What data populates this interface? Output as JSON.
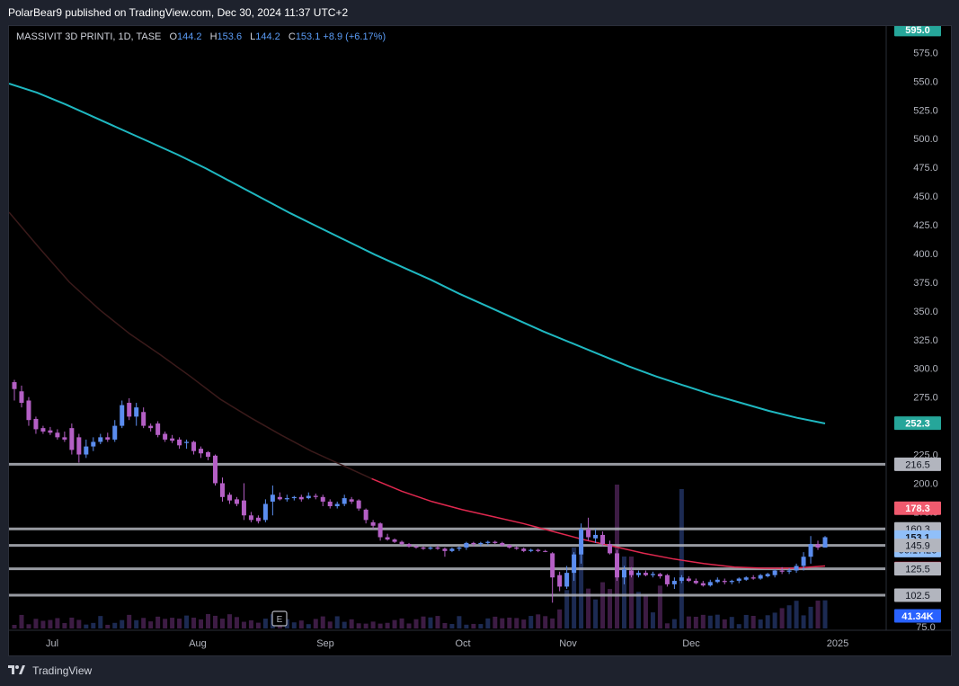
{
  "publish_line": "PolarBear9 published on TradingView.com, Dec 30, 2024 11:37 UTC+2",
  "legend": {
    "symbol": "MASSIVIT 3D PRINTI, 1D, TASE",
    "open_key": "O",
    "open": "144.2",
    "high_key": "H",
    "high": "153.6",
    "low_key": "L",
    "low": "144.2",
    "close_key": "C",
    "close": "153.1",
    "change": "+8.9 (+6.17%)"
  },
  "footer": {
    "brand": "TradingView"
  },
  "colors": {
    "bull": "#5b8def",
    "bear": "#b45fc5",
    "ma_long": "#1fb8c1",
    "ma_mid_dark": "#3a1a1a",
    "ma_mid_red": "#e0284f",
    "hline": "#b2b5be",
    "axis_text": "#b2b5be",
    "volume_bull": "#1c2a52",
    "volume_bear": "#3d1c44"
  },
  "chart_data": {
    "type": "candlestick",
    "symbol": "MASSIVIT 3D PRINTI",
    "interval": "1D",
    "exchange": "TASE",
    "ylim": [
      72,
      598
    ],
    "y_ticks": [
      75,
      100,
      125,
      150,
      175,
      200,
      225,
      250,
      275,
      300,
      325,
      350,
      375,
      400,
      425,
      450,
      475,
      500,
      525,
      550,
      575
    ],
    "x_tick_labels": [
      "Jul",
      "Aug",
      "Sep",
      "Oct",
      "Nov",
      "Dec",
      "2025"
    ],
    "price_badges": [
      {
        "value": "595.0",
        "price": 595.0,
        "color": "#26a69a",
        "kind": "ma"
      },
      {
        "value": "252.3",
        "price": 252.3,
        "color": "#26a69a",
        "kind": "ma"
      },
      {
        "value": "216.5",
        "price": 216.5,
        "color": "#b2b5be",
        "kind": "line"
      },
      {
        "value": "178.3",
        "price": 178.3,
        "color": "#f05a6e",
        "kind": "ma"
      },
      {
        "value": "160.3",
        "price": 160.3,
        "color": "#b2b5be",
        "kind": "line"
      },
      {
        "value": "153.1",
        "price": 153.1,
        "color": "#90bff9",
        "kind": "last",
        "countdown": "06:17:26"
      },
      {
        "value": "145.9",
        "price": 145.9,
        "color": "#b2b5be",
        "kind": "line"
      },
      {
        "value": "125.8",
        "price": 125.8,
        "color": "#e0284f",
        "kind": "ma"
      },
      {
        "value": "125.5",
        "price": 125.5,
        "color": "#b2b5be",
        "kind": "line"
      },
      {
        "value": "102.5",
        "price": 102.5,
        "color": "#b2b5be",
        "kind": "line"
      },
      {
        "value": "41.34K",
        "price": 84.5,
        "color": "#2962ff",
        "kind": "volume"
      }
    ],
    "horizontal_lines": [
      216.5,
      160.3,
      145.9,
      125.5,
      102.5
    ],
    "candles": [
      [
        290,
        272,
        288,
        282,
        "bear"
      ],
      [
        285,
        266,
        280,
        270,
        "bear"
      ],
      [
        275,
        250,
        272,
        255,
        "bear"
      ],
      [
        258,
        243,
        256,
        247,
        "bear"
      ],
      [
        250,
        243,
        248,
        245,
        "bear"
      ],
      [
        249,
        242,
        246,
        244,
        "bear"
      ],
      [
        247,
        238,
        244,
        240,
        "bear"
      ],
      [
        245,
        236,
        240,
        238,
        "bear"
      ],
      [
        252,
        225,
        248,
        229,
        "bear"
      ],
      [
        243,
        218,
        240,
        225,
        "bear"
      ],
      [
        238,
        222,
        225,
        232,
        "bull"
      ],
      [
        240,
        228,
        232,
        236,
        "bull"
      ],
      [
        243,
        234,
        236,
        240,
        "bull"
      ],
      [
        244,
        236,
        240,
        238,
        "bear"
      ],
      [
        255,
        236,
        238,
        250,
        "bull"
      ],
      [
        272,
        248,
        250,
        268,
        "bull"
      ],
      [
        274,
        255,
        270,
        258,
        "bear"
      ],
      [
        270,
        250,
        258,
        266,
        "bull"
      ],
      [
        266,
        248,
        262,
        250,
        "bear"
      ],
      [
        252,
        245,
        250,
        248,
        "bear"
      ],
      [
        254,
        240,
        252,
        242,
        "bear"
      ],
      [
        245,
        236,
        243,
        238,
        "bear"
      ],
      [
        242,
        235,
        239,
        237,
        "bear"
      ],
      [
        240,
        230,
        238,
        233,
        "bear"
      ],
      [
        238,
        230,
        235,
        236,
        "bull"
      ],
      [
        237,
        225,
        236,
        228,
        "bear"
      ],
      [
        232,
        222,
        230,
        226,
        "bear"
      ],
      [
        228,
        220,
        227,
        223,
        "bear"
      ],
      [
        225,
        198,
        224,
        200,
        "bear"
      ],
      [
        205,
        184,
        200,
        188,
        "bear"
      ],
      [
        192,
        182,
        190,
        185,
        "bear"
      ],
      [
        188,
        180,
        186,
        182,
        "bear"
      ],
      [
        200,
        168,
        185,
        172,
        "bear"
      ],
      [
        175,
        166,
        172,
        168,
        "bear"
      ],
      [
        172,
        165,
        170,
        167,
        "bear"
      ],
      [
        186,
        166,
        168,
        182,
        "bull"
      ],
      [
        198,
        172,
        184,
        190,
        "bull"
      ],
      [
        192,
        185,
        188,
        186,
        "bear"
      ],
      [
        190,
        184,
        186,
        187,
        "bull"
      ],
      [
        189,
        185,
        187,
        188,
        "bull"
      ],
      [
        190,
        184,
        188,
        186,
        "bear"
      ],
      [
        192,
        186,
        187,
        189,
        "bull"
      ],
      [
        191,
        186,
        189,
        188,
        "bear"
      ],
      [
        190,
        180,
        188,
        184,
        "bear"
      ],
      [
        186,
        178,
        184,
        180,
        "bear"
      ],
      [
        184,
        178,
        180,
        182,
        "bull"
      ],
      [
        190,
        180,
        182,
        187,
        "bull"
      ],
      [
        188,
        182,
        186,
        184,
        "bear"
      ],
      [
        186,
        176,
        185,
        178,
        "bear"
      ],
      [
        178,
        165,
        177,
        168,
        "bear"
      ],
      [
        168,
        160,
        166,
        163,
        "bear"
      ],
      [
        166,
        150,
        165,
        153,
        "bear"
      ],
      [
        156,
        150,
        153,
        151,
        "bear"
      ],
      [
        152,
        148,
        151,
        149,
        "bear"
      ],
      [
        150,
        146,
        149,
        147,
        "bear"
      ],
      [
        148,
        144,
        147,
        145,
        "bear"
      ],
      [
        146,
        143,
        145,
        144,
        "bear"
      ],
      [
        145,
        142,
        144,
        143,
        "bear"
      ],
      [
        145,
        142,
        143,
        144,
        "bull"
      ],
      [
        146,
        142,
        144,
        143,
        "bear"
      ],
      [
        144,
        136,
        143,
        141,
        "bear"
      ],
      [
        144,
        140,
        141,
        143,
        "bull"
      ],
      [
        145,
        141,
        143,
        144,
        "bull"
      ],
      [
        149,
        142,
        144,
        148,
        "bull"
      ],
      [
        149,
        145,
        148,
        147,
        "bear"
      ],
      [
        149,
        145,
        147,
        148,
        "bull"
      ],
      [
        150,
        146,
        148,
        149,
        "bull"
      ],
      [
        150,
        147,
        149,
        148,
        "bear"
      ],
      [
        149,
        145,
        148,
        146,
        "bear"
      ],
      [
        147,
        143,
        146,
        144,
        "bear"
      ],
      [
        145,
        142,
        144,
        143,
        "bear"
      ],
      [
        144,
        140,
        143,
        141,
        "bear"
      ],
      [
        143,
        140,
        141,
        142,
        "bull"
      ],
      [
        143,
        140,
        142,
        141,
        "bear"
      ],
      [
        142,
        140,
        141,
        141,
        "bear"
      ],
      [
        140,
        96,
        139,
        118,
        "bear"
      ],
      [
        123,
        106,
        120,
        110,
        "bear"
      ],
      [
        128,
        108,
        110,
        122,
        "bull"
      ],
      [
        140,
        115,
        122,
        138,
        "bull"
      ],
      [
        165,
        130,
        138,
        160,
        "bull"
      ],
      [
        170,
        150,
        160,
        153,
        "bear"
      ],
      [
        160,
        148,
        152,
        155,
        "bull"
      ],
      [
        158,
        145,
        155,
        147,
        "bear"
      ],
      [
        150,
        138,
        147,
        139,
        "bear"
      ],
      [
        142,
        115,
        139,
        118,
        "bear"
      ],
      [
        128,
        112,
        118,
        125,
        "bull"
      ],
      [
        127,
        118,
        124,
        120,
        "bear"
      ],
      [
        124,
        118,
        120,
        122,
        "bull"
      ],
      [
        124,
        119,
        122,
        120,
        "bear"
      ],
      [
        123,
        118,
        120,
        121,
        "bull"
      ],
      [
        122,
        117,
        121,
        119,
        "bear"
      ],
      [
        121,
        110,
        120,
        112,
        "bear"
      ],
      [
        118,
        108,
        112,
        115,
        "bull"
      ],
      [
        120,
        113,
        115,
        118,
        "bull"
      ],
      [
        119,
        114,
        117,
        115,
        "bear"
      ],
      [
        117,
        112,
        115,
        113,
        "bear"
      ],
      [
        115,
        110,
        113,
        111,
        "bear"
      ],
      [
        116,
        110,
        111,
        114,
        "bull"
      ],
      [
        118,
        113,
        114,
        116,
        "bull"
      ],
      [
        117,
        112,
        115,
        114,
        "bear"
      ],
      [
        116,
        112,
        114,
        115,
        "bull"
      ],
      [
        118,
        113,
        115,
        117,
        "bull"
      ],
      [
        119,
        115,
        116,
        118,
        "bull"
      ],
      [
        120,
        116,
        118,
        117,
        "bear"
      ],
      [
        121,
        116,
        117,
        120,
        "bull"
      ],
      [
        122,
        118,
        119,
        121,
        "bull"
      ],
      [
        125,
        118,
        120,
        124,
        "bull"
      ],
      [
        127,
        121,
        124,
        123,
        "bear"
      ],
      [
        126,
        121,
        123,
        124,
        "bull"
      ],
      [
        130,
        122,
        124,
        128,
        "bull"
      ],
      [
        140,
        124,
        128,
        136,
        "bull"
      ],
      [
        154,
        130,
        136,
        147,
        "bull"
      ],
      [
        150,
        142,
        147,
        144,
        "bear"
      ],
      [
        154,
        144,
        144,
        153,
        "bull"
      ]
    ],
    "ma_long": [
      548,
      540,
      530,
      519,
      508,
      497,
      486,
      474,
      461,
      448,
      435,
      423,
      411,
      399,
      388,
      377,
      365,
      354,
      343,
      332,
      322,
      312,
      302,
      293,
      285,
      277,
      270,
      263,
      257,
      252
    ],
    "ma_mid": [
      436,
      405,
      375,
      351,
      330,
      312,
      293,
      273,
      257,
      242,
      228,
      216,
      204,
      193,
      184,
      177,
      171,
      165,
      158,
      151,
      145,
      139,
      134,
      130,
      127,
      126,
      126,
      128
    ],
    "ma_mid_red_from_index": 12
  }
}
